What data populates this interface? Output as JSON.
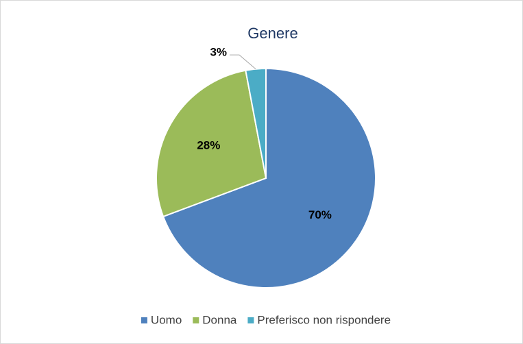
{
  "chart_data": {
    "type": "pie",
    "title": "Genere",
    "categories": [
      "Uomo",
      "Donna",
      "Preferisco non rispondere"
    ],
    "values": [
      70,
      28,
      3
    ],
    "value_labels": [
      "70%",
      "28%",
      "3%"
    ],
    "colors": [
      "#4f81bd",
      "#9bbb59",
      "#4bacc6"
    ],
    "legend": "bottom"
  }
}
